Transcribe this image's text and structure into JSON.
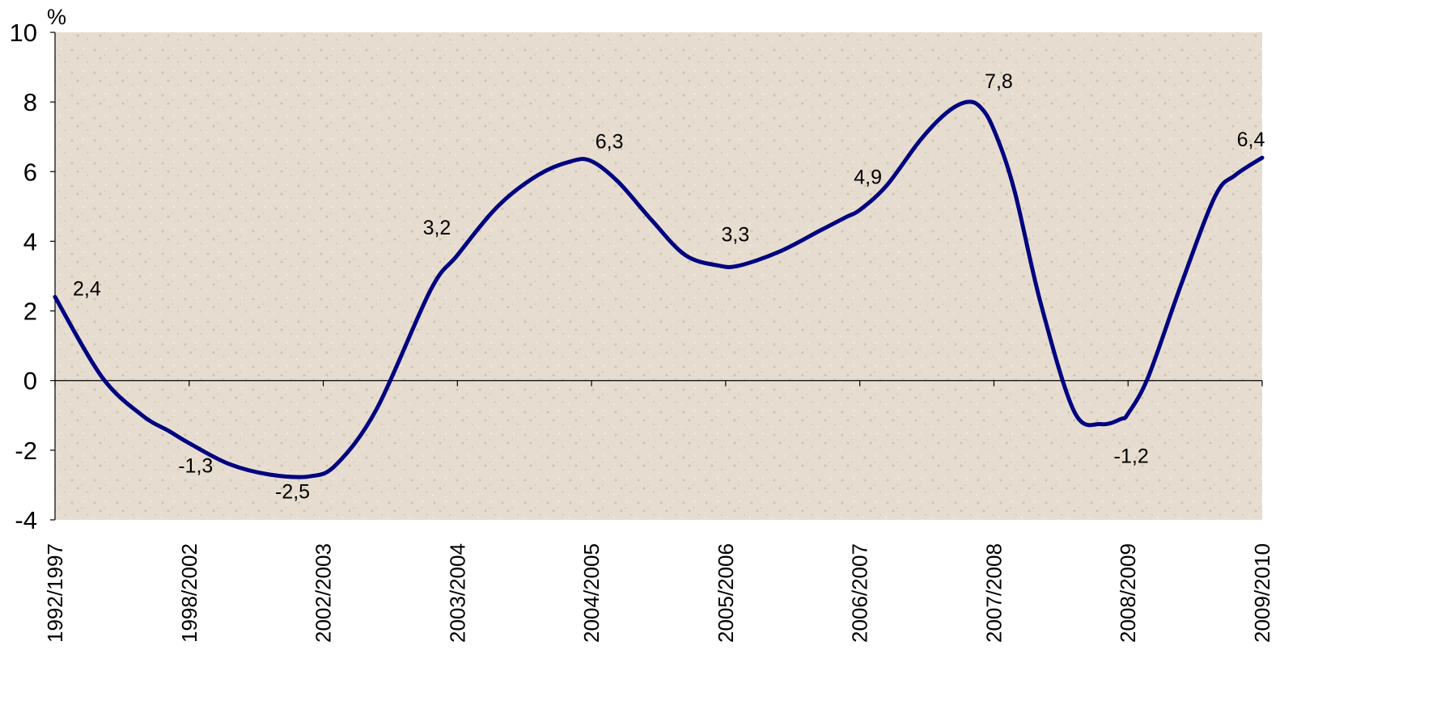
{
  "chart_data": {
    "type": "line",
    "ylabel": "%",
    "ylim": [
      -4,
      10
    ],
    "yticks": [
      -4,
      -2,
      0,
      2,
      4,
      6,
      8,
      10
    ],
    "ytick_labels": [
      "-4",
      "-2",
      "0",
      "2",
      "4",
      "6",
      "8",
      "10"
    ],
    "categories": [
      "1992/1997",
      "1998/2002",
      "2002/2003",
      "2003/2004",
      "2004/2005",
      "2005/2006",
      "2006/2007",
      "2007/2008",
      "2008/2009",
      "2009/2010"
    ],
    "series": [
      {
        "values": [
          2.4,
          -1.3,
          -2.5,
          3.2,
          6.3,
          3.3,
          4.9,
          7.8,
          -1.2,
          6.4
        ],
        "labels": [
          "2,4",
          "-1,3",
          "-2,5",
          "3,2",
          "6,3",
          "3,3",
          "4,9",
          "7,8",
          "-1,2",
          "6,4"
        ],
        "color": "#000080"
      }
    ],
    "curve_x": [
      0,
      0.35,
      0.65,
      0.85,
      1.0,
      1.3,
      1.6,
      1.9,
      2.1,
      2.4,
      2.8,
      3.0,
      3.3,
      3.6,
      3.85,
      4.0,
      4.2,
      4.45,
      4.7,
      4.95,
      5.1,
      5.4,
      5.7,
      5.9,
      6.0,
      6.2,
      6.45,
      6.65,
      6.8,
      6.9,
      7.0,
      7.15,
      7.35,
      7.6,
      7.8,
      7.95,
      8.0,
      8.15,
      8.4,
      8.65,
      8.8,
      9.0
    ],
    "curve_y": [
      2.4,
      0.1,
      -1.0,
      -1.45,
      -1.8,
      -2.4,
      -2.7,
      -2.75,
      -2.4,
      -0.8,
      2.6,
      3.6,
      5.0,
      5.9,
      6.3,
      6.3,
      5.7,
      4.6,
      3.6,
      3.3,
      3.3,
      3.7,
      4.3,
      4.7,
      4.9,
      5.6,
      6.9,
      7.7,
      8.0,
      7.85,
      7.2,
      5.5,
      2.2,
      -0.9,
      -1.25,
      -1.1,
      -0.95,
      0.1,
      2.8,
      5.3,
      5.9,
      6.4
    ],
    "grid": false,
    "background": "#e6ddd0",
    "line_color": "#000080"
  }
}
